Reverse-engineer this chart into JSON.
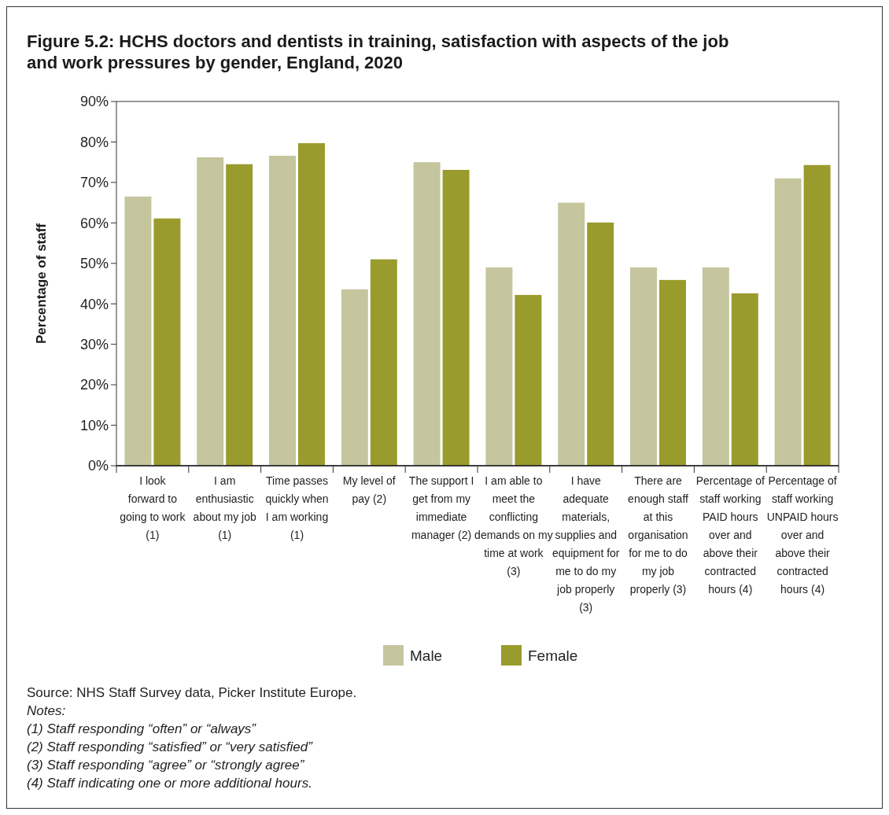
{
  "chart_data": {
    "type": "bar",
    "title": "Figure 5.2: HCHS doctors and dentists in training, satisfaction with aspects of the job and work pressures by gender, England, 2020",
    "ylabel": "Percentage of staff",
    "categories": [
      "I look forward to going to work (1)",
      "I am enthusiastic about my job (1)",
      "Time passes quickly when I am working (1)",
      "My level of pay (2)",
      "The support I get from my immediate manager (2)",
      "I am able to meet the conflicting demands on my time at work (3)",
      "I have adequate materials, supplies and equipment for me to do my job properly (3)",
      "There are enough staff at this organisation for me to do my job properly (3)",
      "Percentage of staff working PAID hours over and above their contracted hours (4)",
      "Percentage of staff working UNPAID hours over and above their contracted hours (4)"
    ],
    "series": [
      {
        "name": "Male",
        "color": "#c5c59e",
        "values": [
          66.5,
          76.2,
          76.6,
          43.6,
          75.0,
          49.0,
          65.0,
          49.0,
          49.0,
          71.0
        ]
      },
      {
        "name": "Female",
        "color": "#9a9b2d",
        "values": [
          61.1,
          74.5,
          79.7,
          51.0,
          73.1,
          42.2,
          60.1,
          45.9,
          42.6,
          74.3
        ]
      }
    ],
    "ylim": [
      0,
      90
    ],
    "yticks": [
      {
        "value": 0,
        "label": "0%"
      },
      {
        "value": 10,
        "label": "10%"
      },
      {
        "value": 20,
        "label": "20%"
      },
      {
        "value": 30,
        "label": "30%"
      },
      {
        "value": 40,
        "label": "40%"
      },
      {
        "value": 50,
        "label": "50%"
      },
      {
        "value": 60,
        "label": "60%"
      },
      {
        "value": 70,
        "label": "70%"
      },
      {
        "value": 80,
        "label": "80%"
      },
      {
        "value": 90,
        "label": "90%"
      }
    ],
    "grid": false,
    "legend": "bottom",
    "annotations": [
      "Source: NHS Staff Survey data, Picker Institute Europe.",
      "Notes:",
      "(1) Staff responding “often” or “always”",
      "(2) Staff responding “satisfied” or “very satisfied”",
      "(3) Staff responding “agree” or “strongly agree”",
      "(4) Staff indicating one or more additional hours."
    ]
  }
}
